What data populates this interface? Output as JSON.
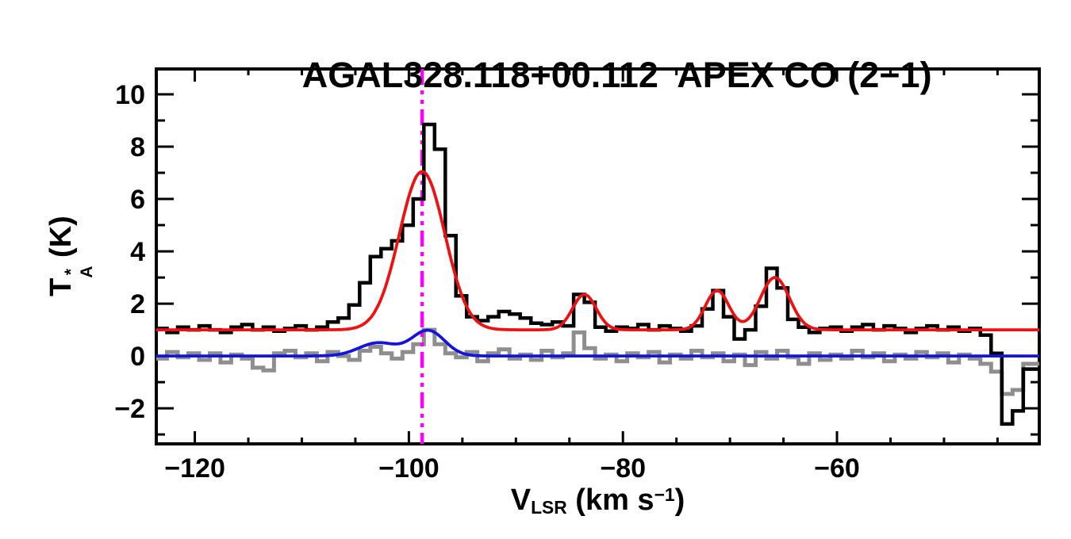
{
  "title": "AGAL328.118+00.112  APEX CO (2−1)",
  "axes": {
    "xlabel_text": "V_LSR (km s^-1)",
    "ylabel_text": "T_A^* (K)",
    "xlabel": {
      "base": "V",
      "sub": "LSR",
      "mid": " (km s",
      "sup": "−1",
      "end": ")"
    },
    "ylabel": {
      "base": "T",
      "sup": "*",
      "sub": "A",
      "end": " (K)"
    },
    "xlim": [
      -123.6,
      -41.1
    ],
    "ylim": [
      -3.36,
      10.97
    ],
    "xticks_major": [
      -120,
      -100,
      -80,
      -60
    ],
    "xtick_minor_step": 5,
    "yticks_major": [
      -2,
      0,
      2,
      4,
      6,
      8,
      10
    ],
    "ytick_minor_step": 1,
    "frame_color": "#000000"
  },
  "chart_data": {
    "type": "line",
    "title": "AGAL328.118+00.112  APEX CO (2−1)",
    "xlabel": "V_LSR (km s^-1)",
    "ylabel": "T_A^* (K)",
    "xlim": [
      -123.6,
      -41.1
    ],
    "ylim": [
      -3.36,
      10.97
    ],
    "grid": false,
    "legend": false,
    "series": [
      {
        "name": "observed-co-spectrum",
        "style": "histogram",
        "color": "#000000",
        "line_width": 4.5,
        "v0": -123.1,
        "dv": 1.0,
        "values": [
          1.05,
          0.9,
          1.1,
          1.0,
          1.15,
          1.0,
          0.9,
          1.1,
          1.2,
          1.0,
          1.1,
          0.95,
          1.05,
          1.15,
          1.0,
          1.1,
          1.3,
          1.45,
          1.95,
          2.8,
          3.8,
          4.1,
          4.4,
          5.0,
          6.0,
          8.85,
          7.9,
          4.6,
          2.3,
          1.5,
          1.35,
          1.5,
          1.7,
          1.6,
          1.45,
          1.25,
          1.2,
          1.3,
          1.15,
          2.35,
          2.05,
          1.1,
          0.95,
          1.1,
          1.05,
          1.2,
          1.0,
          1.15,
          1.05,
          0.95,
          1.15,
          1.8,
          2.5,
          1.5,
          0.65,
          1.0,
          1.9,
          3.35,
          2.6,
          1.4,
          1.1,
          0.9,
          1.05,
          1.1,
          0.95,
          1.1,
          1.2,
          1.0,
          1.15,
          1.05,
          0.9,
          1.05,
          1.15,
          1.0,
          1.1,
          0.95,
          1.05,
          0.8,
          0.1,
          -2.6,
          -2.1,
          -0.5
        ]
      },
      {
        "name": "residual-spectrum",
        "style": "histogram",
        "color": "#8e8e8e",
        "line_width": 5,
        "v0": -123.1,
        "dv": 1.0,
        "values": [
          -0.1,
          0.15,
          -0.05,
          0.1,
          -0.15,
          0.1,
          -0.25,
          0.05,
          -0.1,
          -0.45,
          -0.55,
          0.1,
          0.2,
          -0.05,
          0.1,
          -0.2,
          0.15,
          0.0,
          -0.15,
          0.2,
          0.35,
          0.1,
          -0.1,
          0.15,
          0.45,
          1.0,
          0.45,
          0.1,
          -0.05,
          0.15,
          -0.2,
          0.1,
          0.25,
          -0.1,
          0.05,
          -0.15,
          0.2,
          -0.05,
          0.1,
          0.9,
          0.3,
          -0.1,
          0.05,
          -0.2,
          0.1,
          -0.05,
          0.15,
          -0.25,
          0.05,
          -0.1,
          0.2,
          -0.05,
          0.1,
          -0.2,
          0.05,
          -0.35,
          0.15,
          -0.1,
          0.2,
          -0.05,
          -0.3,
          0.1,
          -0.15,
          0.05,
          -0.1,
          0.2,
          -0.05,
          0.1,
          -0.2,
          0.05,
          -0.1,
          0.15,
          -0.05,
          0.1,
          -0.25,
          0.05,
          -0.1,
          -0.3,
          -0.6,
          -1.45,
          -1.3,
          -0.3
        ]
      },
      {
        "name": "gaussian-fit-main",
        "style": "smooth",
        "color": "#ee1111",
        "line_width": 3.8,
        "baseline": 1.0,
        "gaussians": [
          {
            "center": -98.76,
            "amplitude": 6.05,
            "fwhm": 5.0
          },
          {
            "center": -83.6,
            "amplitude": 1.35,
            "fwhm": 2.6
          },
          {
            "center": -71.2,
            "amplitude": 1.5,
            "fwhm": 2.6
          },
          {
            "center": -65.8,
            "amplitude": 2.0,
            "fwhm": 3.2
          }
        ]
      },
      {
        "name": "gaussian-fit-secondary",
        "style": "smooth",
        "color": "#1414dd",
        "line_width": 3.8,
        "baseline": 0.0,
        "gaussians": [
          {
            "center": -102.9,
            "amplitude": 0.5,
            "fwhm": 4.2
          },
          {
            "center": -98.2,
            "amplitude": 0.97,
            "fwhm": 3.6
          }
        ]
      }
    ],
    "vline": {
      "x": -98.76,
      "color": "#ff00ff",
      "style": "dash-dot",
      "line_width": 4.5
    }
  }
}
